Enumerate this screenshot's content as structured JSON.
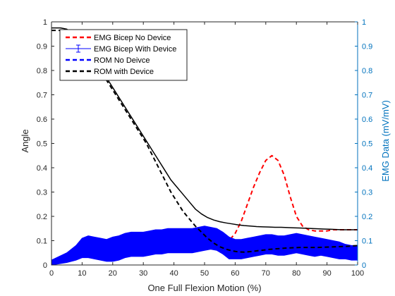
{
  "chart_data": {
    "type": "line",
    "title": "",
    "xlabel": "One Full Flexion Motion (%)",
    "ylabel_left": "Angle",
    "ylabel_right": "EMG Data (mV/mV)",
    "xlim": [
      0,
      100
    ],
    "ylim_left": [
      0,
      1
    ],
    "ylim_right": [
      0,
      1
    ],
    "x_ticks": [
      0,
      10,
      20,
      30,
      40,
      50,
      60,
      70,
      80,
      90,
      100
    ],
    "y_ticks_left": [
      0,
      0.1,
      0.2,
      0.3,
      0.4,
      0.5,
      0.6,
      0.7,
      0.8,
      0.9,
      1
    ],
    "y_ticks_right": [
      0,
      0.1,
      0.2,
      0.3,
      0.4,
      0.5,
      0.6,
      0.7,
      0.8,
      0.9,
      1
    ],
    "right_axis_color": "#0072BD",
    "grid": false,
    "legend_position": "top-left",
    "series": [
      {
        "name": "EMG Bicep No Device",
        "style": "dashed",
        "color": "#FF0000",
        "x": [
          43,
          45,
          47,
          50,
          53,
          56,
          58,
          60,
          62,
          64,
          66,
          68,
          70,
          72,
          74,
          76,
          78,
          80,
          82,
          84,
          86,
          88,
          90,
          92,
          94,
          96,
          98,
          100
        ],
        "y": [
          0.125,
          0.13,
          0.12,
          0.11,
          0.1,
          0.095,
          0.1,
          0.13,
          0.18,
          0.25,
          0.32,
          0.38,
          0.43,
          0.45,
          0.43,
          0.37,
          0.28,
          0.2,
          0.16,
          0.145,
          0.14,
          0.14,
          0.14,
          0.145,
          0.145,
          0.145,
          0.145,
          0.145
        ]
      },
      {
        "name": "EMG Bicep With Device",
        "style": "errorbar",
        "color": "#0000FF",
        "x": [
          0,
          5,
          8,
          10,
          12,
          14,
          16,
          18,
          20,
          22,
          24,
          26,
          28,
          30,
          32,
          34,
          36,
          38,
          40,
          42,
          44,
          46,
          48,
          50,
          52,
          54,
          56,
          58,
          60,
          62,
          64,
          66,
          68,
          70,
          72,
          74,
          76,
          78,
          80,
          82,
          84,
          86,
          88,
          90,
          92,
          94,
          96,
          98,
          100
        ],
        "y": [
          0.01,
          0.03,
          0.05,
          0.07,
          0.075,
          0.07,
          0.065,
          0.06,
          0.065,
          0.07,
          0.08,
          0.085,
          0.085,
          0.085,
          0.09,
          0.095,
          0.095,
          0.1,
          0.1,
          0.1,
          0.1,
          0.1,
          0.105,
          0.11,
          0.11,
          0.105,
          0.09,
          0.07,
          0.065,
          0.065,
          0.07,
          0.075,
          0.08,
          0.085,
          0.085,
          0.08,
          0.08,
          0.085,
          0.09,
          0.085,
          0.08,
          0.075,
          0.075,
          0.07,
          0.065,
          0.06,
          0.055,
          0.05,
          0.05
        ],
        "error": [
          0.01,
          0.02,
          0.03,
          0.04,
          0.045,
          0.045,
          0.045,
          0.045,
          0.05,
          0.05,
          0.05,
          0.05,
          0.05,
          0.05,
          0.05,
          0.05,
          0.05,
          0.05,
          0.05,
          0.05,
          0.05,
          0.05,
          0.05,
          0.05,
          0.045,
          0.045,
          0.045,
          0.045,
          0.04,
          0.04,
          0.04,
          0.04,
          0.04,
          0.04,
          0.04,
          0.04,
          0.04,
          0.04,
          0.04,
          0.04,
          0.04,
          0.04,
          0.035,
          0.035,
          0.035,
          0.035,
          0.03,
          0.03,
          0.03
        ]
      },
      {
        "name": "ROM No Deivce",
        "style": "dashed",
        "color": "#0000FF",
        "x": [],
        "y": []
      },
      {
        "name": "ROM with Device",
        "style": "dashed",
        "color": "#000000",
        "x": [
          0,
          3,
          5,
          7,
          9,
          11,
          13,
          15,
          17,
          19,
          21,
          23,
          25,
          27,
          29,
          31,
          33,
          35,
          37,
          39,
          41,
          43,
          45,
          47,
          49,
          51,
          53,
          55,
          57,
          59,
          61,
          63,
          65,
          67,
          69,
          71,
          73,
          75,
          77,
          79,
          81,
          83,
          85,
          87,
          89,
          91,
          93,
          95,
          97,
          100
        ],
        "y": [
          0.965,
          0.965,
          0.96,
          0.94,
          0.91,
          0.87,
          0.84,
          0.81,
          0.78,
          0.74,
          0.7,
          0.66,
          0.62,
          0.58,
          0.54,
          0.5,
          0.45,
          0.4,
          0.35,
          0.3,
          0.26,
          0.22,
          0.19,
          0.16,
          0.135,
          0.11,
          0.09,
          0.075,
          0.065,
          0.058,
          0.054,
          0.053,
          0.055,
          0.058,
          0.061,
          0.064,
          0.066,
          0.068,
          0.07,
          0.071,
          0.072,
          0.072,
          0.072,
          0.072,
          0.073,
          0.074,
          0.075,
          0.076,
          0.077,
          0.08
        ]
      },
      {
        "name": "",
        "style": "solid",
        "color": "#000000",
        "x": [
          0,
          3,
          5,
          7,
          9,
          11,
          13,
          15,
          17,
          19,
          21,
          23,
          25,
          27,
          29,
          31,
          33,
          35,
          37,
          39,
          41,
          43,
          45,
          47,
          49,
          51,
          53,
          55,
          57,
          59,
          61,
          63,
          65,
          67,
          69,
          71,
          73,
          75,
          77,
          79,
          81,
          83,
          85,
          87,
          89,
          91,
          93,
          95,
          97,
          100
        ],
        "y": [
          0.975,
          0.975,
          0.97,
          0.95,
          0.92,
          0.88,
          0.85,
          0.82,
          0.79,
          0.75,
          0.71,
          0.67,
          0.63,
          0.59,
          0.55,
          0.51,
          0.47,
          0.43,
          0.39,
          0.35,
          0.32,
          0.29,
          0.26,
          0.23,
          0.21,
          0.195,
          0.185,
          0.178,
          0.173,
          0.169,
          0.165,
          0.162,
          0.16,
          0.158,
          0.157,
          0.156,
          0.155,
          0.155,
          0.154,
          0.153,
          0.152,
          0.151,
          0.15,
          0.149,
          0.148,
          0.147,
          0.146,
          0.145,
          0.145,
          0.145
        ]
      }
    ]
  }
}
